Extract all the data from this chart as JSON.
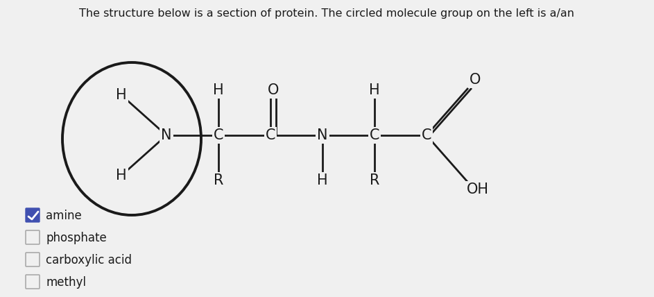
{
  "title": "The structure below is a section of protein. The circled molecule group on the left is a/an",
  "background_color": "#f0f0f0",
  "line_color": "#1a1a1a",
  "text_color": "#1a1a1a",
  "options": [
    "amine",
    "phosphate",
    "carboxylic acid",
    "methyl"
  ],
  "checked_index": 0,
  "figsize": [
    9.43,
    4.28
  ],
  "dpi": 100
}
